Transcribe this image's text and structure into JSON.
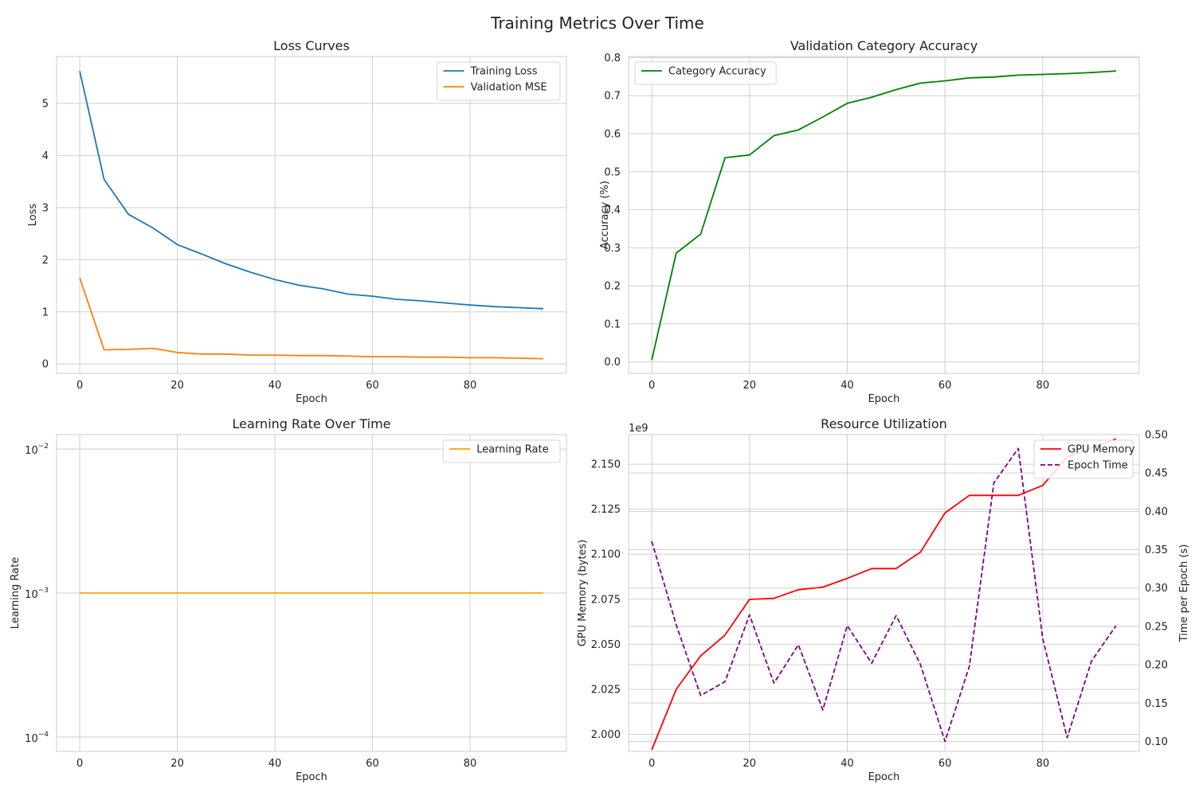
{
  "suptitle": "Training Metrics Over Time",
  "chart_data": [
    {
      "id": "loss",
      "type": "line",
      "title": "Loss Curves",
      "xlabel": "Epoch",
      "ylabel": "Loss",
      "xlim": [
        -4.75,
        99.75
      ],
      "ylim": [
        -0.18,
        5.9
      ],
      "xticks": [
        0,
        20,
        40,
        60,
        80
      ],
      "yticks": [
        0,
        1,
        2,
        3,
        4,
        5
      ],
      "grid": true,
      "legend": "top-right",
      "x": [
        0,
        5,
        10,
        15,
        20,
        25,
        30,
        35,
        40,
        45,
        50,
        55,
        60,
        65,
        70,
        75,
        80,
        85,
        90,
        95
      ],
      "series": [
        {
          "name": "Training Loss",
          "color": "#1f77b4",
          "dash": "solid",
          "values": [
            5.62,
            3.54,
            2.87,
            2.61,
            2.29,
            2.11,
            1.92,
            1.76,
            1.62,
            1.51,
            1.44,
            1.34,
            1.3,
            1.24,
            1.21,
            1.17,
            1.13,
            1.1,
            1.08,
            1.06
          ]
        },
        {
          "name": "Validation MSE",
          "color": "#ff7f0e",
          "dash": "solid",
          "values": [
            1.65,
            0.27,
            0.28,
            0.3,
            0.22,
            0.19,
            0.19,
            0.17,
            0.17,
            0.16,
            0.16,
            0.15,
            0.14,
            0.14,
            0.13,
            0.13,
            0.12,
            0.12,
            0.11,
            0.1
          ]
        }
      ]
    },
    {
      "id": "acc",
      "type": "line",
      "title": "Validation Category Accuracy",
      "xlabel": "Epoch",
      "ylabel": "Accuracy (%)",
      "xlim": [
        -4.75,
        99.75
      ],
      "ylim": [
        -0.03,
        0.803
      ],
      "xticks": [
        0,
        20,
        40,
        60,
        80
      ],
      "yticks": [
        0.0,
        0.1,
        0.2,
        0.3,
        0.4,
        0.5,
        0.6,
        0.7,
        0.8
      ],
      "ytick_labels": [
        "0.0",
        "0.1",
        "0.2",
        "0.3",
        "0.4",
        "0.5",
        "0.6",
        "0.7",
        "0.8"
      ],
      "grid": true,
      "legend": "top-left",
      "x": [
        0,
        5,
        10,
        15,
        20,
        25,
        30,
        35,
        40,
        45,
        50,
        55,
        60,
        65,
        70,
        75,
        80,
        85,
        90,
        95
      ],
      "series": [
        {
          "name": "Category Accuracy",
          "color": "#008000",
          "dash": "solid",
          "values": [
            0.005,
            0.286,
            0.336,
            0.537,
            0.544,
            0.595,
            0.61,
            0.644,
            0.68,
            0.696,
            0.716,
            0.733,
            0.739,
            0.747,
            0.749,
            0.754,
            0.756,
            0.758,
            0.761,
            0.765
          ]
        }
      ]
    },
    {
      "id": "lr",
      "type": "line",
      "title": "Learning Rate Over Time",
      "xlabel": "Epoch",
      "ylabel": "Learning Rate",
      "yscale": "log",
      "xlim": [
        -4.75,
        99.75
      ],
      "ylim": [
        7.94e-05,
        0.0126
      ],
      "xticks": [
        0,
        20,
        40,
        60,
        80
      ],
      "yticks": [
        0.0001,
        0.001,
        0.01
      ],
      "ytick_exponents": [
        "−4",
        "−3",
        "−2"
      ],
      "grid": true,
      "legend": "top-right",
      "x": [
        0,
        5,
        10,
        15,
        20,
        25,
        30,
        35,
        40,
        45,
        50,
        55,
        60,
        65,
        70,
        75,
        80,
        85,
        90,
        95
      ],
      "series": [
        {
          "name": "Learning Rate",
          "color": "#ffa500",
          "dash": "solid",
          "values": [
            0.001,
            0.001,
            0.001,
            0.001,
            0.001,
            0.001,
            0.001,
            0.001,
            0.001,
            0.001,
            0.001,
            0.001,
            0.001,
            0.001,
            0.001,
            0.001,
            0.001,
            0.001,
            0.001,
            0.001
          ]
        }
      ]
    },
    {
      "id": "res",
      "type": "line",
      "title": "Resource Utilization",
      "xlabel": "Epoch",
      "ylabel": "GPU Memory (bytes)",
      "ylabel_right": "Time per Epoch (s)",
      "offset_label": "1e9",
      "xlim": [
        -4.75,
        99.75
      ],
      "ylim": [
        1.9905,
        2.1664
      ],
      "ylim_right": [
        0.087,
        0.5
      ],
      "xticks": [
        0,
        20,
        40,
        60,
        80
      ],
      "yticks": [
        2.0,
        2.025,
        2.05,
        2.075,
        2.1,
        2.125,
        2.15
      ],
      "ytick_labels": [
        "2.000",
        "2.025",
        "2.050",
        "2.075",
        "2.100",
        "2.125",
        "2.150"
      ],
      "yticks_right": [
        0.1,
        0.15,
        0.2,
        0.25,
        0.3,
        0.35,
        0.4,
        0.45,
        0.5
      ],
      "ytick_labels_right": [
        "0.10",
        "0.15",
        "0.20",
        "0.25",
        "0.30",
        "0.35",
        "0.40",
        "0.45",
        "0.50"
      ],
      "grid": true,
      "legend": "top-right",
      "x": [
        0,
        5,
        10,
        15,
        20,
        25,
        30,
        35,
        40,
        45,
        50,
        55,
        60,
        65,
        70,
        75,
        80,
        85,
        90,
        95
      ],
      "series": [
        {
          "name": "GPU Memory",
          "color": "#ff0000",
          "dash": "solid",
          "axis": "left",
          "values": [
            1.9914,
            2.025,
            2.0436,
            2.0551,
            2.0749,
            2.0755,
            2.0803,
            2.0817,
            2.0866,
            2.092,
            2.092,
            2.1012,
            2.1229,
            2.1327,
            2.1327,
            2.1327,
            2.1382,
            2.154,
            2.159,
            2.164
          ]
        },
        {
          "name": "Epoch Time",
          "color": "#800080",
          "dash": "dashed",
          "axis": "right",
          "values": [
            0.361,
            0.252,
            0.16,
            0.178,
            0.265,
            0.176,
            0.226,
            0.141,
            0.251,
            0.202,
            0.264,
            0.2,
            0.1,
            0.198,
            0.437,
            0.482,
            0.234,
            0.105,
            0.205,
            0.251
          ]
        }
      ]
    }
  ]
}
